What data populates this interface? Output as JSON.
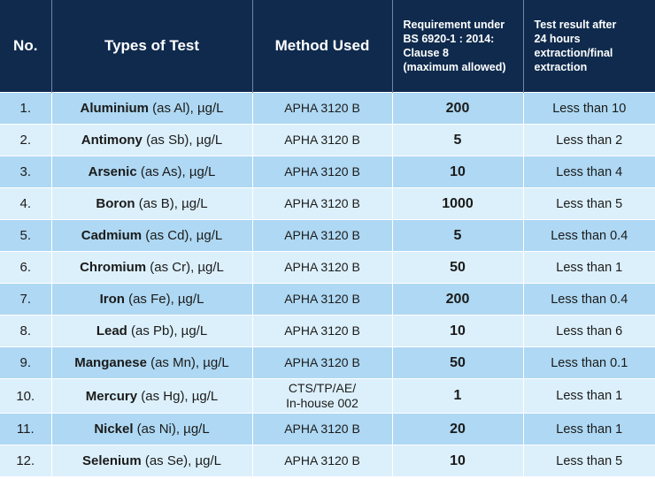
{
  "header": {
    "no": "No.",
    "type": "Types of Test",
    "method": "Method Used",
    "requirement": "Requirement under\nBS 6920-1 : 2014:\nClause 8\n(maximum allowed)",
    "result": "Test result after\n 24 hours\nextraction/final\nextraction"
  },
  "rows": [
    {
      "no": "1.",
      "element": "Aluminium",
      "detail": " (as Al), µg/L",
      "method": "APHA 3120 B",
      "req": "200",
      "result": "Less than 10"
    },
    {
      "no": "2.",
      "element": "Antimony",
      "detail": " (as Sb), µg/L",
      "method": "APHA 3120 B",
      "req": "5",
      "result": "Less than 2"
    },
    {
      "no": "3.",
      "element": "Arsenic",
      "detail": " (as As), µg/L",
      "method": "APHA 3120 B",
      "req": "10",
      "result": "Less than 4"
    },
    {
      "no": "4.",
      "element": "Boron",
      "detail": " (as B), µg/L",
      "method": "APHA 3120 B",
      "req": "1000",
      "result": "Less than 5"
    },
    {
      "no": "5.",
      "element": "Cadmium",
      "detail": " (as Cd), µg/L",
      "method": "APHA 3120 B",
      "req": "5",
      "result": "Less than 0.4"
    },
    {
      "no": "6.",
      "element": "Chromium",
      "detail": " (as Cr), µg/L",
      "method": "APHA 3120 B",
      "req": "50",
      "result": "Less than 1"
    },
    {
      "no": "7.",
      "element": "Iron",
      "detail": " (as Fe), µg/L",
      "method": "APHA 3120 B",
      "req": "200",
      "result": "Less than 0.4"
    },
    {
      "no": "8.",
      "element": "Lead",
      "detail": " (as Pb), µg/L",
      "method": "APHA 3120 B",
      "req": "10",
      "result": "Less than 6"
    },
    {
      "no": "9.",
      "element": "Manganese",
      "detail": " (as Mn), µg/L",
      "method": "APHA 3120 B",
      "req": "50",
      "result": "Less than 0.1"
    },
    {
      "no": "10.",
      "element": "Mercury",
      "detail": " (as Hg), µg/L",
      "method": "CTS/TP/AE/\nIn-house 002",
      "req": "1",
      "result": "Less than 1"
    },
    {
      "no": "11.",
      "element": "Nickel",
      "detail": " (as Ni), µg/L",
      "method": "APHA 3120 B",
      "req": "20",
      "result": "Less than 1"
    },
    {
      "no": "12.",
      "element": "Selenium",
      "detail": " (as Se), µg/L",
      "method": "APHA 3120 B",
      "req": "10",
      "result": "Less than 5"
    }
  ]
}
